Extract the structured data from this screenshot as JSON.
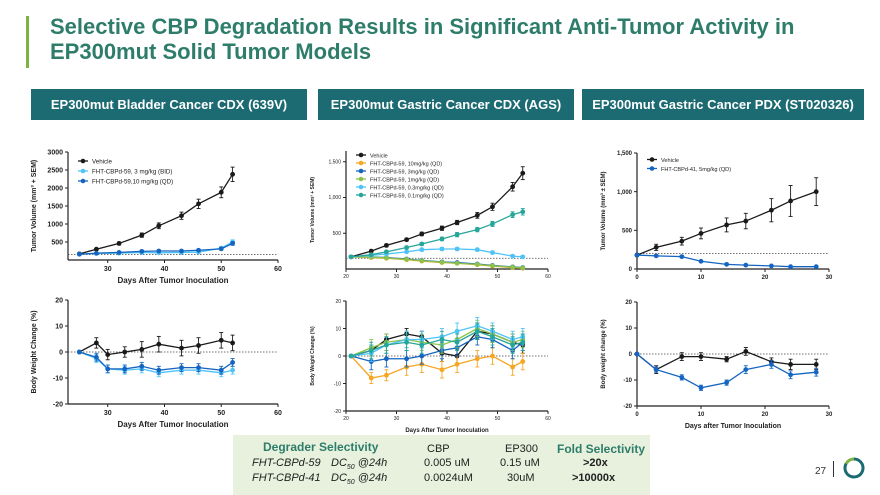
{
  "slide": {
    "title": "Selective CBP Degradation Results in Significant Anti-Tumor Activity in EP300mut Solid Tumor Models",
    "page_number": "27",
    "accent_color": "#7cb342",
    "header_color": "#1c6b73",
    "title_color": "#2e7d6b"
  },
  "panels": [
    {
      "header": "EP300mut Bladder Cancer CDX (639V)"
    },
    {
      "header": "EP300mut Gastric Cancer CDX (AGS)"
    },
    {
      "header": "EP300mut Gastric Cancer PDX (ST020326)"
    }
  ],
  "chart_data": [
    {
      "id": "bladder-tv",
      "type": "line",
      "xlabel": "Days After Tumor Inoculation",
      "ylabel": "Tumor Volume (mm³ + SEM)",
      "xlim": [
        23,
        60
      ],
      "ylim": [
        0,
        3000
      ],
      "xticks": [
        30,
        40,
        50,
        60
      ],
      "xtick_labels": [
        "30",
        "40",
        "50",
        "60"
      ],
      "yticks": [
        500,
        1000,
        1500,
        2000,
        2500,
        3000
      ],
      "ytick_labels": [
        "500",
        "1000",
        "1500",
        "2000",
        "2500",
        "3000"
      ],
      "baseline": 150,
      "tick_size": 7,
      "bold": true,
      "series": [
        {
          "name": "Vehicle",
          "color": "#1a1a1a",
          "x": [
            25,
            28,
            32,
            36,
            39,
            43,
            46,
            50,
            52
          ],
          "y": [
            170,
            300,
            460,
            690,
            950,
            1230,
            1560,
            1880,
            2380
          ],
          "err": [
            20,
            30,
            40,
            60,
            80,
            100,
            130,
            150,
            200
          ]
        },
        {
          "name": "FHT-CBPd-59, 3 mg/kg (BID)",
          "color": "#4fc3f7",
          "x": [
            25,
            28,
            32,
            36,
            39,
            43,
            46,
            50,
            52
          ],
          "y": [
            160,
            180,
            190,
            210,
            200,
            210,
            220,
            330,
            500
          ],
          "err": [
            10,
            10,
            15,
            20,
            20,
            20,
            25,
            40,
            60
          ]
        },
        {
          "name": "FHT-CBPd-59,10 mg/kg (QD)",
          "color": "#1565c0",
          "x": [
            25,
            28,
            32,
            36,
            39,
            43,
            46,
            50,
            52
          ],
          "y": [
            160,
            190,
            210,
            240,
            250,
            250,
            270,
            310,
            460
          ],
          "err": [
            10,
            15,
            20,
            20,
            25,
            25,
            30,
            35,
            50
          ]
        }
      ]
    },
    {
      "id": "bladder-bw",
      "type": "line",
      "xlabel": "Days After Tumor Inoculation",
      "ylabel": "Body Weight Change (%)",
      "xlim": [
        23,
        60
      ],
      "ylim": [
        -20,
        20
      ],
      "xticks": [
        30,
        40,
        50,
        60
      ],
      "xtick_labels": [
        "30",
        "40",
        "50",
        "60"
      ],
      "yticks": [
        -20,
        -10,
        0,
        10,
        20
      ],
      "ytick_labels": [
        "-20",
        "-10",
        "0",
        "10",
        "20"
      ],
      "baseline": 0,
      "tick_size": 7,
      "bold": true,
      "series": [
        {
          "name": "Vehicle",
          "color": "#1a1a1a",
          "x": [
            25,
            28,
            30,
            33,
            36,
            39,
            43,
            46,
            50,
            52
          ],
          "y": [
            0,
            3.5,
            -1,
            0,
            1,
            3,
            1.5,
            2.5,
            4.5,
            3.5
          ],
          "err": [
            0,
            2,
            2,
            2,
            3,
            3,
            3,
            3,
            3,
            3
          ]
        },
        {
          "name": "FHT-CBPd-59, 3 mg/kg (BID)",
          "color": "#4fc3f7",
          "x": [
            25,
            28,
            30,
            33,
            36,
            39,
            43,
            46,
            50,
            52
          ],
          "y": [
            0,
            -2.5,
            -6.5,
            -7,
            -6.5,
            -8,
            -7,
            -7,
            -8,
            -7
          ],
          "err": [
            0,
            1.5,
            1.5,
            1.5,
            1.5,
            1.5,
            1.5,
            1.5,
            1.5,
            1.5
          ]
        },
        {
          "name": "FHT-CBPd-59,10 mg/kg (QD)",
          "color": "#1565c0",
          "x": [
            25,
            28,
            30,
            33,
            36,
            39,
            43,
            46,
            50,
            52
          ],
          "y": [
            0,
            -2,
            -6.5,
            -6.5,
            -5.5,
            -7,
            -6,
            -6,
            -7,
            -4
          ],
          "err": [
            0,
            1.5,
            1.5,
            1.5,
            1.5,
            1.5,
            1.5,
            1.5,
            1.5,
            1.5
          ]
        }
      ]
    },
    {
      "id": "gastric-cdx-tv",
      "type": "line",
      "xlabel": "",
      "ylabel": "Tumor Volume (mm³ + SEM)",
      "xlim": [
        20,
        60
      ],
      "ylim": [
        0,
        1650
      ],
      "xticks": [
        20,
        30,
        40,
        50,
        60
      ],
      "xtick_labels": [
        "20",
        "30",
        "40",
        "50",
        "60"
      ],
      "yticks": [
        500,
        1000,
        1500
      ],
      "ytick_labels": [
        "500",
        "1,000",
        "1,500"
      ],
      "baseline": 150,
      "tick_size": 5,
      "bold": false,
      "series": [
        {
          "name": "Vehicle",
          "color": "#1a1a1a",
          "x": [
            21,
            25,
            28,
            32,
            35,
            39,
            42,
            46,
            49,
            53,
            55
          ],
          "y": [
            170,
            250,
            330,
            410,
            490,
            570,
            650,
            750,
            870,
            1150,
            1340
          ],
          "err": [
            10,
            15,
            20,
            20,
            25,
            30,
            30,
            40,
            50,
            60,
            90
          ]
        },
        {
          "name": "FHT-CBPd-59, 10mg/kg (QD)",
          "color": "#f5a623",
          "x": [
            21,
            25,
            28,
            32,
            35,
            39,
            42,
            46,
            49,
            53,
            55
          ],
          "y": [
            170,
            160,
            150,
            130,
            110,
            90,
            80,
            60,
            40,
            20,
            10
          ],
          "err": [
            5,
            5,
            5,
            5,
            5,
            5,
            5,
            5,
            5,
            3,
            3
          ]
        },
        {
          "name": "FHT-CBPd-59, 3mg/kg (QD)",
          "color": "#1565c0",
          "x": [
            21,
            25,
            28,
            32,
            35,
            39,
            42,
            46,
            49,
            53,
            55
          ],
          "y": [
            170,
            170,
            160,
            140,
            120,
            100,
            90,
            70,
            50,
            30,
            20
          ],
          "err": [
            5,
            5,
            5,
            5,
            5,
            5,
            5,
            5,
            5,
            3,
            3
          ]
        },
        {
          "name": "FHT-CBPd-59, 1mg/kg (QD)",
          "color": "#8bc34a",
          "x": [
            21,
            25,
            28,
            32,
            35,
            39,
            42,
            46,
            49,
            53,
            55
          ],
          "y": [
            170,
            165,
            155,
            135,
            115,
            95,
            80,
            65,
            45,
            25,
            15
          ],
          "err": [
            5,
            5,
            5,
            5,
            5,
            5,
            5,
            5,
            5,
            3,
            3
          ]
        },
        {
          "name": "FHT-CBPd-59, 0.3mg/kg (QD)",
          "color": "#4fc3f7",
          "x": [
            21,
            25,
            28,
            32,
            35,
            39,
            42,
            46,
            49,
            53,
            55
          ],
          "y": [
            170,
            190,
            210,
            240,
            270,
            280,
            280,
            270,
            230,
            180,
            170
          ],
          "err": [
            10,
            10,
            15,
            15,
            20,
            20,
            20,
            20,
            20,
            15,
            15
          ]
        },
        {
          "name": "FHT-CBPd-59, 0.1mg/kg (QD)",
          "color": "#26a69a",
          "x": [
            21,
            25,
            28,
            32,
            35,
            39,
            42,
            46,
            49,
            53,
            55
          ],
          "y": [
            170,
            200,
            240,
            300,
            350,
            420,
            480,
            550,
            630,
            760,
            800
          ],
          "err": [
            10,
            10,
            15,
            20,
            20,
            25,
            30,
            30,
            35,
            40,
            45
          ]
        }
      ]
    },
    {
      "id": "gastric-cdx-bw",
      "type": "line",
      "xlabel": "Days After Tumor Inoculation",
      "ylabel": "Body Weight Change (%)",
      "xlim": [
        20,
        60
      ],
      "ylim": [
        -20,
        20
      ],
      "xticks": [
        20,
        30,
        40,
        50,
        60
      ],
      "xtick_labels": [
        "20",
        "30",
        "40",
        "50",
        "60"
      ],
      "yticks": [
        -20,
        -10,
        0,
        10,
        20
      ],
      "ytick_labels": [
        "-20",
        "-10",
        "0",
        "10",
        "20"
      ],
      "baseline": 0,
      "tick_size": 5,
      "bold": false,
      "series": [
        {
          "name": "Vehicle",
          "color": "#1a1a1a",
          "x": [
            21,
            25,
            28,
            32,
            35,
            39,
            42,
            46,
            49,
            53,
            55
          ],
          "y": [
            0,
            2,
            6,
            8,
            7,
            1,
            0,
            9,
            8,
            5,
            4
          ],
          "err": [
            0,
            2,
            2,
            2,
            2,
            3,
            3,
            3,
            3,
            3,
            3
          ]
        },
        {
          "name": "FHT-CBPd-59, 10mg/kg (QD)",
          "color": "#f5a623",
          "x": [
            21,
            25,
            28,
            32,
            35,
            39,
            42,
            46,
            49,
            53,
            55
          ],
          "y": [
            0,
            -8,
            -7,
            -4,
            -3,
            -5,
            -3,
            -1,
            0,
            -4,
            -2
          ],
          "err": [
            0,
            2,
            2,
            3,
            3,
            3,
            3,
            3,
            3,
            3,
            3
          ]
        },
        {
          "name": "FHT-CBPd-59, 3mg/kg (QD)",
          "color": "#1565c0",
          "x": [
            21,
            25,
            28,
            32,
            35,
            39,
            42,
            46,
            49,
            53,
            55
          ],
          "y": [
            0,
            -2,
            -1,
            -1,
            0,
            2,
            3,
            7,
            6,
            2,
            5
          ],
          "err": [
            0,
            3,
            3,
            3,
            3,
            3,
            3,
            3,
            3,
            3,
            3
          ]
        },
        {
          "name": "FHT-CBPd-59, 1mg/kg (QD)",
          "color": "#8bc34a",
          "x": [
            21,
            25,
            28,
            32,
            35,
            39,
            42,
            46,
            49,
            53,
            55
          ],
          "y": [
            0,
            3,
            5,
            6,
            5,
            4,
            6,
            10,
            8,
            5,
            6
          ],
          "err": [
            0,
            3,
            3,
            3,
            3,
            3,
            3,
            3,
            3,
            3,
            3
          ]
        },
        {
          "name": "FHT-CBPd-59, 0.3mg/kg (QD)",
          "color": "#4fc3f7",
          "x": [
            21,
            25,
            28,
            32,
            35,
            39,
            42,
            46,
            49,
            53,
            55
          ],
          "y": [
            0,
            1,
            4,
            6,
            6,
            7,
            9,
            11,
            9,
            6,
            7
          ],
          "err": [
            0,
            3,
            3,
            3,
            3,
            3,
            3,
            3,
            3,
            3,
            3
          ]
        },
        {
          "name": "FHT-CBPd-59, 0.1mg/kg (QD)",
          "color": "#26a69a",
          "x": [
            21,
            25,
            28,
            32,
            35,
            39,
            42,
            46,
            49,
            53,
            55
          ],
          "y": [
            0,
            2,
            4,
            5,
            4,
            6,
            5,
            9,
            7,
            4,
            5
          ],
          "err": [
            0,
            3,
            3,
            3,
            3,
            3,
            3,
            3,
            3,
            3,
            3
          ]
        }
      ]
    },
    {
      "id": "gastric-pdx-tv",
      "type": "line",
      "xlabel": "",
      "ylabel": "Tumor Volume (mm³ ± SEM)",
      "xlim": [
        0,
        30
      ],
      "ylim": [
        0,
        1500
      ],
      "xticks": [
        0,
        10,
        20,
        30
      ],
      "xtick_labels": [
        "0",
        "10",
        "20",
        "30"
      ],
      "yticks": [
        0,
        500,
        1000,
        1500
      ],
      "ytick_labels": [
        "0",
        "500",
        "1,000",
        "1,500"
      ],
      "baseline": 200,
      "tick_size": 6,
      "bold": true,
      "series": [
        {
          "name": "Vehicle",
          "color": "#1a1a1a",
          "x": [
            0,
            3,
            7,
            10,
            14,
            17,
            21,
            24,
            28
          ],
          "y": [
            180,
            280,
            360,
            460,
            570,
            620,
            760,
            880,
            1000
          ],
          "err": [
            20,
            40,
            50,
            70,
            90,
            100,
            150,
            200,
            180
          ]
        },
        {
          "name": "FHT-CBPd-41, 5mg/kg (QD)",
          "color": "#1565c0",
          "x": [
            0,
            3,
            7,
            10,
            14,
            17,
            21,
            24,
            28
          ],
          "y": [
            180,
            170,
            160,
            100,
            60,
            50,
            40,
            30,
            30
          ],
          "err": [
            15,
            15,
            15,
            10,
            10,
            8,
            8,
            6,
            6
          ]
        }
      ]
    },
    {
      "id": "gastric-pdx-bw",
      "type": "line",
      "xlabel": "Days after Tumor Inoculation",
      "ylabel": "Body weight change (%)",
      "xlim": [
        0,
        30
      ],
      "ylim": [
        -20,
        20
      ],
      "xticks": [
        0,
        10,
        20,
        30
      ],
      "xtick_labels": [
        "0",
        "10",
        "20",
        "30"
      ],
      "yticks": [
        -20,
        -10,
        0,
        10,
        20
      ],
      "ytick_labels": [
        "-20",
        "-10",
        "0",
        "10",
        "20"
      ],
      "baseline": 0,
      "tick_size": 6,
      "bold": true,
      "series": [
        {
          "name": "Vehicle",
          "color": "#1a1a1a",
          "x": [
            0,
            3,
            7,
            10,
            14,
            17,
            21,
            24,
            28
          ],
          "y": [
            0,
            -6,
            -1,
            -1,
            -2,
            1,
            -3,
            -4,
            -4
          ],
          "err": [
            0,
            1.5,
            1.5,
            1.5,
            1,
            1.5,
            1.5,
            2,
            2
          ]
        },
        {
          "name": "FHT-CBPd-41, 5mg/kg (QD)",
          "color": "#1565c0",
          "x": [
            0,
            3,
            7,
            10,
            14,
            17,
            21,
            24,
            28
          ],
          "y": [
            0,
            -6,
            -9,
            -13,
            -11,
            -6,
            -4,
            -8,
            -7
          ],
          "err": [
            0,
            1,
            1,
            1,
            1,
            1.5,
            1.5,
            1.5,
            1.5
          ]
        }
      ]
    }
  ],
  "selectivity": {
    "title": "Degrader Selectivity",
    "col_cbp": "CBP",
    "col_ep300": "EP300",
    "col_fold": "Fold Selectivity",
    "rows": [
      {
        "compound": "FHT-CBPd-59",
        "metric": "DC",
        "sub": "50",
        "at": "@24h",
        "cbp": "0.005 uM",
        "ep300": "0.15 uM",
        "fold": ">20x"
      },
      {
        "compound": "FHT-CBPd-41",
        "metric": "DC",
        "sub": "50",
        "at": "@24h",
        "cbp": "0.0024uM",
        "ep300": "30uM",
        "fold": ">10000x"
      }
    ]
  }
}
